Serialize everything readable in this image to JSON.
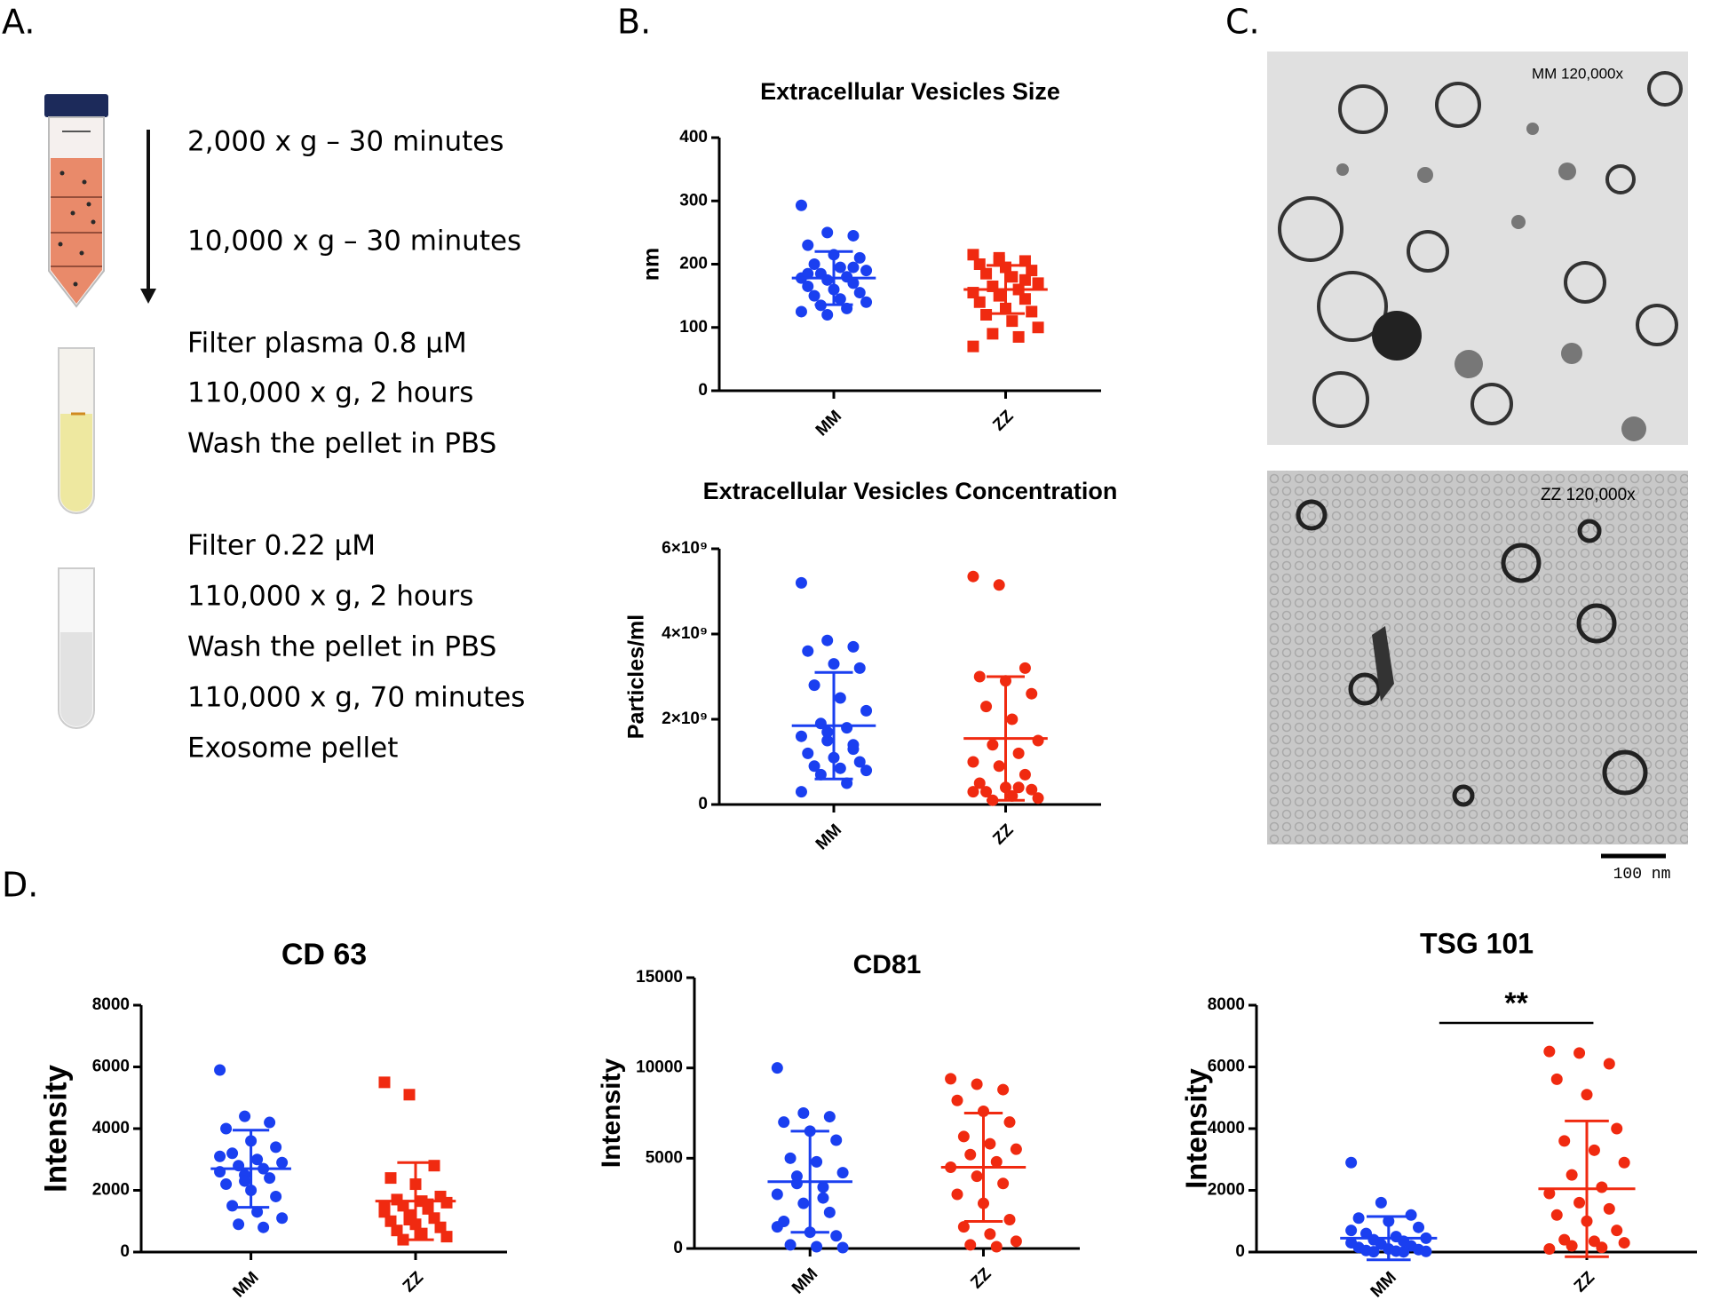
{
  "panel_labels": [
    "A.",
    "B.",
    "C.",
    "D."
  ],
  "protocol": [
    "2,000 x g – 30 minutes",
    "10,000 x g – 30 minutes",
    "Filter plasma 0.8 µM",
    "110,000 x g, 2 hours",
    "Wash the pellet in PBS",
    "Filter 0.22 µM",
    "110,000 x g, 2 hours",
    "Wash the pellet in PBS",
    "110,000 x g, 70 minutes",
    "Exosome pellet"
  ],
  "micrographs": {
    "top_label": "MM 120,000x",
    "bottom_label": "ZZ 120,000x",
    "scale_bar": "100 nm"
  },
  "chart_data": [
    {
      "type": "dot",
      "title": "Extracellular Vesicles Size",
      "ylabel": "nm",
      "ylim": [
        0,
        400
      ],
      "yticks": [
        0,
        100,
        200,
        300,
        400
      ],
      "series": [
        {
          "name": "MM",
          "color": "#1a3ff0",
          "marker": "circle",
          "mean": 178,
          "error": 42,
          "values": [
            293,
            250,
            245,
            230,
            215,
            210,
            200,
            195,
            190,
            185,
            180,
            178,
            175,
            170,
            165,
            160,
            155,
            150,
            145,
            140,
            135,
            130,
            125,
            120,
            195,
            185
          ]
        },
        {
          "name": "ZZ",
          "color": "#f02a10",
          "marker": "square",
          "mean": 160,
          "error": 38,
          "values": [
            215,
            210,
            205,
            200,
            195,
            190,
            185,
            180,
            170,
            165,
            160,
            155,
            150,
            145,
            140,
            130,
            125,
            120,
            110,
            100,
            90,
            85,
            70,
            205,
            175
          ]
        }
      ]
    },
    {
      "type": "dot",
      "title": "Extracellular Vesicles Concentration",
      "ylabel": "Particles/ml",
      "ylim": [
        0,
        6000000000
      ],
      "yticks": [
        0,
        {
          "value": 2000000000,
          "label": "2×10⁹"
        },
        {
          "value": 4000000000,
          "label": "4×10⁹"
        },
        {
          "value": 6000000000,
          "label": "6×10⁹"
        }
      ],
      "series": [
        {
          "name": "MM",
          "color": "#1a3ff0",
          "marker": "circle",
          "mean": 1850000000,
          "error": 1250000000,
          "values": [
            5200000000,
            3850000000,
            3700000000,
            3600000000,
            3300000000,
            3200000000,
            2800000000,
            2500000000,
            2200000000,
            1900000000,
            1800000000,
            1600000000,
            1500000000,
            1300000000,
            1200000000,
            1100000000,
            1000000000,
            900000000,
            850000000,
            800000000,
            700000000,
            500000000,
            300000000,
            1700000000,
            1400000000
          ]
        },
        {
          "name": "ZZ",
          "color": "#f02a10",
          "marker": "circle",
          "mean": 1550000000,
          "error": 1450000000,
          "values": [
            5350000000,
            5150000000,
            3200000000,
            3000000000,
            2900000000,
            2600000000,
            2300000000,
            2000000000,
            1500000000,
            1400000000,
            1200000000,
            1000000000,
            900000000,
            700000000,
            500000000,
            400000000,
            350000000,
            300000000,
            200000000,
            150000000,
            100000000,
            400000000,
            300000000
          ]
        }
      ]
    },
    {
      "type": "dot",
      "title": "CD 63",
      "ylabel": "Intensity",
      "ylim": [
        0,
        8000
      ],
      "yticks": [
        0,
        2000,
        4000,
        6000,
        8000
      ],
      "series": [
        {
          "name": "MM",
          "color": "#1a3ff0",
          "marker": "circle",
          "mean": 2700,
          "error": 1250,
          "values": [
            5900,
            4400,
            4200,
            4000,
            3600,
            3400,
            3200,
            3000,
            2900,
            2800,
            2700,
            2600,
            2500,
            2400,
            2200,
            2000,
            1800,
            1500,
            1300,
            1100,
            900,
            800,
            3100,
            2300
          ]
        },
        {
          "name": "ZZ",
          "color": "#f02a10",
          "marker": "square",
          "mean": 1650,
          "error": 1250,
          "values": [
            5500,
            5100,
            2800,
            2400,
            2200,
            1800,
            1700,
            1650,
            1600,
            1500,
            1400,
            1300,
            1200,
            1100,
            1000,
            900,
            800,
            700,
            600,
            500,
            400,
            1550,
            1450,
            1050
          ]
        }
      ]
    },
    {
      "type": "dot",
      "title": "CD81",
      "ylabel": "Intensity",
      "ylim": [
        0,
        15000
      ],
      "yticks": [
        0,
        5000,
        10000,
        15000
      ],
      "series": [
        {
          "name": "MM",
          "color": "#1a3ff0",
          "marker": "circle",
          "mean": 3700,
          "error": 2800,
          "values": [
            10000,
            7500,
            7300,
            7000,
            6500,
            6000,
            5000,
            4800,
            4200,
            3600,
            3400,
            3000,
            2500,
            2000,
            1500,
            900,
            700,
            200,
            100,
            50,
            4000,
            2800,
            1200
          ]
        },
        {
          "name": "ZZ",
          "color": "#f02a10",
          "marker": "circle",
          "mean": 4500,
          "error": 3000,
          "values": [
            9400,
            9100,
            8800,
            8200,
            7600,
            7000,
            6200,
            5800,
            5500,
            5200,
            4800,
            4500,
            4000,
            3600,
            3000,
            2500,
            1600,
            1200,
            800,
            400,
            200,
            100
          ]
        }
      ]
    },
    {
      "type": "dot",
      "title": "TSG 101",
      "ylabel": "Intensity",
      "annotation": "**",
      "ylim": [
        0,
        8000
      ],
      "yticks": [
        0,
        2000,
        4000,
        6000,
        8000
      ],
      "series": [
        {
          "name": "MM",
          "color": "#1a3ff0",
          "marker": "circle",
          "mean": 450,
          "error": 700,
          "values": [
            2900,
            1600,
            1200,
            1100,
            1000,
            800,
            600,
            500,
            450,
            400,
            350,
            300,
            250,
            200,
            150,
            100,
            80,
            50,
            30,
            20,
            10,
            5,
            700
          ]
        },
        {
          "name": "ZZ",
          "color": "#f02a10",
          "marker": "circle",
          "mean": 2050,
          "error": 2200,
          "values": [
            6500,
            6450,
            6100,
            5600,
            5100,
            4000,
            3600,
            3300,
            2900,
            2500,
            2100,
            1900,
            1600,
            1400,
            1200,
            1000,
            700,
            400,
            350,
            300,
            200,
            150,
            100
          ]
        }
      ]
    }
  ]
}
